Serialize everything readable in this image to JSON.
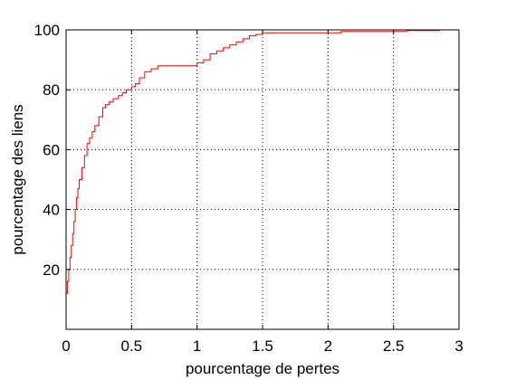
{
  "chart_data": {
    "type": "line",
    "xlabel": "pourcentage de pertes",
    "ylabel": "pourcentage des liens",
    "xlim": [
      0,
      3
    ],
    "ylim": [
      0,
      100
    ],
    "xticks": [
      0,
      0.5,
      1,
      1.5,
      2,
      2.5,
      3
    ],
    "xtick_labels": [
      "0",
      "0.5",
      "1",
      "1.5",
      "2",
      "2.5",
      "3"
    ],
    "yticks": [
      20,
      40,
      60,
      80,
      100
    ],
    "ytick_labels": [
      "20",
      "40",
      "60",
      "80",
      "100"
    ],
    "grid": true,
    "line_color": "#ff0000",
    "series": [
      {
        "x": [
          0,
          0.01,
          0.02,
          0.03,
          0.04,
          0.05,
          0.06,
          0.07,
          0.08,
          0.09,
          0.1,
          0.12,
          0.14,
          0.16,
          0.18,
          0.2,
          0.22,
          0.25,
          0.28,
          0.3,
          0.33,
          0.36,
          0.4,
          0.43,
          0.46,
          0.5,
          0.53,
          0.56,
          0.6,
          0.65,
          0.7,
          0.75,
          0.8,
          0.85,
          0.9,
          0.95,
          1.0,
          1.05,
          1.1,
          1.15,
          1.2,
          1.25,
          1.3,
          1.35,
          1.4,
          1.45,
          1.5,
          1.6,
          1.7,
          1.8,
          1.9,
          2.0,
          2.1,
          2.3,
          2.6,
          2.85
        ],
        "y": [
          12,
          16,
          20,
          24,
          28,
          32,
          36,
          40,
          44,
          47,
          50,
          54,
          58,
          62,
          64,
          66,
          68,
          71,
          74,
          75,
          76,
          77,
          78,
          79,
          80,
          81,
          82,
          84,
          86,
          87,
          88,
          88,
          88,
          88,
          88,
          88,
          89,
          90,
          92,
          93,
          94,
          95,
          96,
          97,
          98,
          98.5,
          99,
          99,
          99,
          99,
          99,
          99,
          99.5,
          99.5,
          99.8,
          100
        ]
      }
    ]
  }
}
